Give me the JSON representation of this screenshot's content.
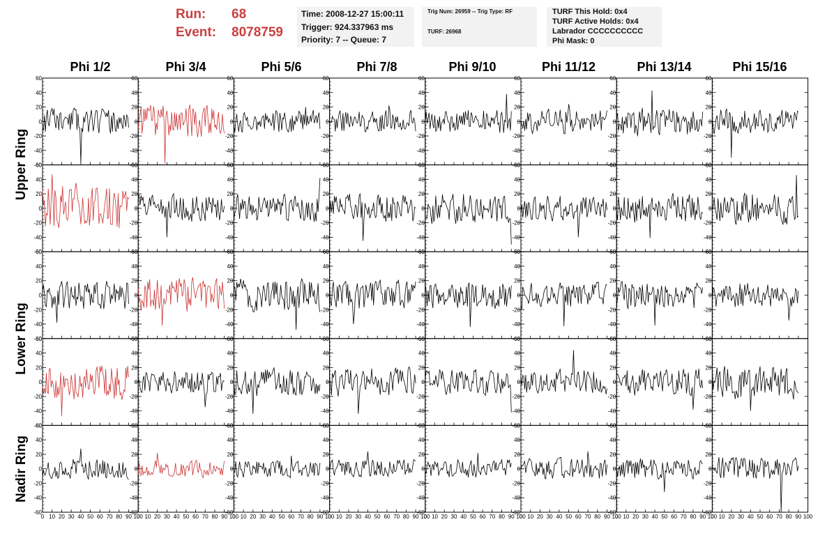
{
  "run": {
    "label": "Run:",
    "value": "68"
  },
  "event": {
    "label": "Event:",
    "value": "8078759"
  },
  "time_box": {
    "time": "Time: 2008-12-27 15:00:11",
    "trigger": "Trigger: 924.337963 ms",
    "priority": "Priority: 7 -- Queue: 7"
  },
  "trig_box": {
    "trig": "Trig Num: 26959 -- Trig Type: RF",
    "turf": "TURF: 26968"
  },
  "turf_box": {
    "this_hold": "TURF This Hold: 0x4",
    "active_holds": "TURF Active Holds: 0x4",
    "labrador": "Labrador CCCCCCCCCC",
    "phi_mask": "Phi Mask: 0"
  },
  "columns": [
    "Phi 1/2",
    "Phi 3/4",
    "Phi 5/6",
    "Phi 7/8",
    "Phi 9/10",
    "Phi 11/12",
    "Phi 13/14",
    "Phi 15/16"
  ],
  "rows": [
    "Upper Ring",
    "Lower Ring",
    "Nadir Ring"
  ],
  "colors": {
    "normal_trace": "#000000",
    "triggered_trace": "#cc3333",
    "title_red": "#c94040",
    "box_bg": "#f2f2f2"
  },
  "chart_data": {
    "type": "line",
    "description_units": "waveform amplitude vs sample",
    "xlim": [
      0,
      100
    ],
    "ylim": [
      -60,
      60
    ],
    "x_ticks": [
      0,
      10,
      20,
      30,
      40,
      50,
      60,
      70,
      80,
      90,
      100
    ],
    "x_tick_labels": [
      "0",
      "10",
      "20",
      "30",
      "40",
      "50",
      "60",
      "70",
      "80",
      "90",
      "100"
    ],
    "y_ticks": [
      -60,
      -40,
      -20,
      0,
      20,
      40,
      60
    ],
    "y_tick_labels": [
      "-60",
      "-40",
      "-20",
      "0",
      "20",
      "40",
      "60"
    ],
    "x_count": 91,
    "grid": false,
    "triggered_panels": [
      [
        0,
        1
      ],
      [
        1,
        0
      ],
      [
        2,
        1
      ],
      [
        3,
        0
      ],
      [
        4,
        1
      ]
    ],
    "panels": [
      {
        "row": 0,
        "col": 0,
        "amp": 12,
        "peak": [
          40,
          -57
        ],
        "seed": 11
      },
      {
        "row": 0,
        "col": 1,
        "amp": 16,
        "peak": [
          28,
          -58
        ],
        "seed": 12
      },
      {
        "row": 0,
        "col": 2,
        "amp": 11,
        "peak": [
          75,
          20
        ],
        "seed": 13
      },
      {
        "row": 0,
        "col": 3,
        "amp": 11,
        "peak": [
          62,
          22
        ],
        "seed": 14
      },
      {
        "row": 0,
        "col": 4,
        "amp": 12,
        "peak": [
          85,
          38
        ],
        "seed": 15
      },
      {
        "row": 0,
        "col": 5,
        "amp": 12,
        "peak": [
          50,
          24
        ],
        "seed": 16
      },
      {
        "row": 0,
        "col": 6,
        "amp": 14,
        "peak": [
          37,
          43
        ],
        "seed": 17
      },
      {
        "row": 0,
        "col": 7,
        "amp": 12,
        "peak": [
          20,
          -50
        ],
        "seed": 18
      },
      {
        "row": 1,
        "col": 0,
        "amp": 23,
        "peak": [
          10,
          47
        ],
        "seed": 21
      },
      {
        "row": 1,
        "col": 1,
        "amp": 13,
        "peak": [
          30,
          -40
        ],
        "seed": 22
      },
      {
        "row": 1,
        "col": 2,
        "amp": 13,
        "peak": [
          90,
          42
        ],
        "seed": 23
      },
      {
        "row": 1,
        "col": 3,
        "amp": 14,
        "peak": [
          35,
          -45
        ],
        "seed": 24
      },
      {
        "row": 1,
        "col": 4,
        "amp": 15,
        "peak": [
          90,
          -50
        ],
        "seed": 25
      },
      {
        "row": 1,
        "col": 5,
        "amp": 12,
        "peak": [
          60,
          -40
        ],
        "seed": 26
      },
      {
        "row": 1,
        "col": 6,
        "amp": 14,
        "peak": [
          35,
          -41
        ],
        "seed": 27
      },
      {
        "row": 1,
        "col": 7,
        "amp": 15,
        "peak": [
          88,
          46
        ],
        "seed": 28
      },
      {
        "row": 2,
        "col": 0,
        "amp": 14,
        "peak": [
          15,
          -38
        ],
        "seed": 31
      },
      {
        "row": 2,
        "col": 1,
        "amp": 16,
        "peak": [
          25,
          -42
        ],
        "seed": 32
      },
      {
        "row": 2,
        "col": 2,
        "amp": 16,
        "peak": [
          65,
          -48
        ],
        "seed": 33
      },
      {
        "row": 2,
        "col": 3,
        "amp": 14,
        "peak": [
          25,
          -40
        ],
        "seed": 34
      },
      {
        "row": 2,
        "col": 4,
        "amp": 13,
        "peak": [
          47,
          -44
        ],
        "seed": 35
      },
      {
        "row": 2,
        "col": 5,
        "amp": 12,
        "peak": [
          45,
          -43
        ],
        "seed": 36
      },
      {
        "row": 2,
        "col": 6,
        "amp": 13,
        "peak": [
          40,
          -42
        ],
        "seed": 37
      },
      {
        "row": 2,
        "col": 7,
        "amp": 12,
        "peak": [
          80,
          -35
        ],
        "seed": 38
      },
      {
        "row": 3,
        "col": 0,
        "amp": 17,
        "peak": [
          20,
          -47
        ],
        "seed": 41
      },
      {
        "row": 3,
        "col": 1,
        "amp": 11,
        "peak": [
          70,
          -35
        ],
        "seed": 42
      },
      {
        "row": 3,
        "col": 2,
        "amp": 14,
        "peak": [
          20,
          -44
        ],
        "seed": 43
      },
      {
        "row": 3,
        "col": 3,
        "amp": 14,
        "peak": [
          30,
          -44
        ],
        "seed": 44
      },
      {
        "row": 3,
        "col": 4,
        "amp": 12,
        "peak": [
          90,
          -42
        ],
        "seed": 45
      },
      {
        "row": 3,
        "col": 5,
        "amp": 12,
        "peak": [
          55,
          44
        ],
        "seed": 46
      },
      {
        "row": 3,
        "col": 6,
        "amp": 13,
        "peak": [
          80,
          -38
        ],
        "seed": 47
      },
      {
        "row": 3,
        "col": 7,
        "amp": 16,
        "peak": [
          40,
          -40
        ],
        "seed": 48
      },
      {
        "row": 4,
        "col": 0,
        "amp": 10,
        "peak": [
          40,
          28
        ],
        "seed": 51
      },
      {
        "row": 4,
        "col": 1,
        "amp": 8,
        "peak": [
          20,
          22
        ],
        "seed": 52
      },
      {
        "row": 4,
        "col": 2,
        "amp": 8,
        "peak": [
          60,
          18
        ],
        "seed": 53
      },
      {
        "row": 4,
        "col": 3,
        "amp": 9,
        "peak": [
          40,
          24
        ],
        "seed": 54
      },
      {
        "row": 4,
        "col": 4,
        "amp": 9,
        "peak": [
          55,
          22
        ],
        "seed": 55
      },
      {
        "row": 4,
        "col": 5,
        "amp": 10,
        "peak": [
          70,
          24
        ],
        "seed": 56
      },
      {
        "row": 4,
        "col": 6,
        "amp": 10,
        "peak": [
          50,
          -32
        ],
        "seed": 57
      },
      {
        "row": 4,
        "col": 7,
        "amp": 11,
        "peak": [
          72,
          -60
        ],
        "seed": 58
      }
    ]
  }
}
